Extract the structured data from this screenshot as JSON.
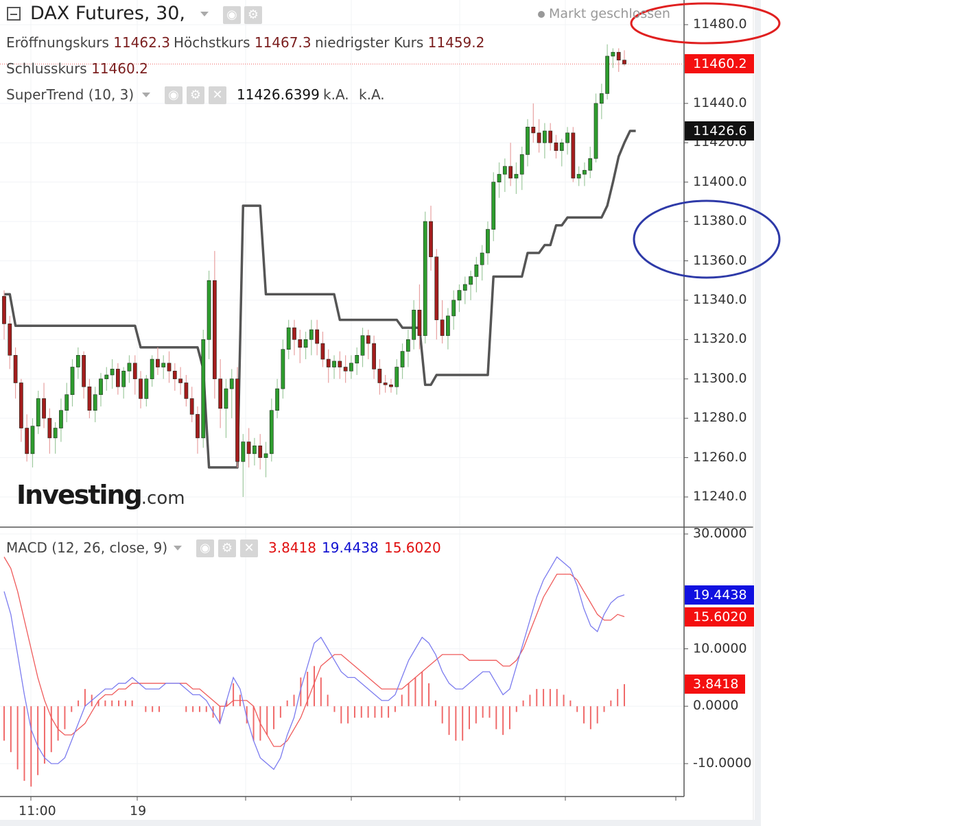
{
  "header": {
    "title": "DAX Futures, 30,",
    "status": "Markt geschlossen",
    "ohlc": {
      "open_label": "Eröffnungskurs",
      "open": "11462.3",
      "high_label": "Höchstkurs",
      "high": "11467.3",
      "low_label": "niedrigster Kurs",
      "low": "11459.2",
      "close_label": "Schlusskurs",
      "close": "11460.2"
    },
    "supertrend": {
      "label": "SuperTrend (10, 3)",
      "value": "11426.6399",
      "na1": "k.A.",
      "na2": "k.A."
    },
    "macd": {
      "label": "MACD (12, 26, close, 9)",
      "hist": "3.8418",
      "macd": "19.4438",
      "signal": "15.6020"
    },
    "brand": {
      "name": "Investing",
      "suffix": ".com"
    }
  },
  "colors": {
    "up": "#2e9c2e",
    "down": "#a31d1d",
    "supertrend": "#555555",
    "macd_line": "#7b7bef",
    "signal_line": "#ef5a5a",
    "histogram": "#f06a6a",
    "ellipse_red": "#e02020",
    "ellipse_blue": "#2e3aa8"
  },
  "chart_data": [
    {
      "type": "candlestick",
      "series_name": "DAX Futures, 30,",
      "ylim": [
        11230,
        11490
      ],
      "yticks": [
        "11480.0",
        "11440.0",
        "11420.0",
        "11400.0",
        "11380.0",
        "11360.0",
        "11340.0",
        "11320.0",
        "11300.0",
        "11280.0",
        "11260.0",
        "11240.0"
      ],
      "ytick_values": [
        11480,
        11440,
        11420,
        11400,
        11380,
        11360,
        11340,
        11320,
        11300,
        11280,
        11260,
        11240
      ],
      "xticks": [
        "11:00",
        "19"
      ],
      "last_price_tag": "11460.2",
      "supertrend_tag": "11426.6",
      "candles": [
        [
          11342,
          11345,
          11320,
          11328
        ],
        [
          11328,
          11332,
          11305,
          11312
        ],
        [
          11312,
          11316,
          11290,
          11298
        ],
        [
          11298,
          11300,
          11268,
          11275
        ],
        [
          11275,
          11282,
          11258,
          11262
        ],
        [
          11262,
          11280,
          11255,
          11276
        ],
        [
          11276,
          11294,
          11272,
          11290
        ],
        [
          11290,
          11298,
          11275,
          11280
        ],
        [
          11280,
          11285,
          11262,
          11270
        ],
        [
          11270,
          11278,
          11262,
          11275
        ],
        [
          11275,
          11290,
          11268,
          11284
        ],
        [
          11284,
          11298,
          11278,
          11292
        ],
        [
          11292,
          11310,
          11286,
          11306
        ],
        [
          11306,
          11316,
          11300,
          11312
        ],
        [
          11312,
          11314,
          11290,
          11296
        ],
        [
          11296,
          11300,
          11280,
          11284
        ],
        [
          11284,
          11296,
          11278,
          11292
        ],
        [
          11292,
          11303,
          11286,
          11300
        ],
        [
          11300,
          11306,
          11294,
          11302
        ],
        [
          11302,
          11310,
          11295,
          11305
        ],
        [
          11305,
          11308,
          11292,
          11296
        ],
        [
          11296,
          11306,
          11290,
          11304
        ],
        [
          11304,
          11312,
          11298,
          11308
        ],
        [
          11308,
          11312,
          11292,
          11300
        ],
        [
          11300,
          11304,
          11285,
          11290
        ],
        [
          11290,
          11302,
          11286,
          11300
        ],
        [
          11300,
          11312,
          11296,
          11310
        ],
        [
          11310,
          11316,
          11302,
          11306
        ],
        [
          11306,
          11312,
          11300,
          11308
        ],
        [
          11308,
          11314,
          11298,
          11304
        ],
        [
          11304,
          11308,
          11294,
          11300
        ],
        [
          11300,
          11306,
          11292,
          11298
        ],
        [
          11298,
          11302,
          11286,
          11290
        ],
        [
          11290,
          11296,
          11278,
          11282
        ],
        [
          11282,
          11286,
          11262,
          11270
        ],
        [
          11270,
          11325,
          11265,
          11320
        ],
        [
          11320,
          11355,
          11310,
          11350
        ],
        [
          11350,
          11365,
          11290,
          11300
        ],
        [
          11300,
          11310,
          11275,
          11285
        ],
        [
          11285,
          11300,
          11270,
          11295
        ],
        [
          11295,
          11305,
          11280,
          11300
        ],
        [
          11300,
          11306,
          11255,
          11258
        ],
        [
          11258,
          11272,
          11240,
          11268
        ],
        [
          11268,
          11275,
          11255,
          11262
        ],
        [
          11262,
          11270,
          11256,
          11266
        ],
        [
          11266,
          11272,
          11254,
          11260
        ],
        [
          11260,
          11268,
          11250,
          11262
        ],
        [
          11262,
          11290,
          11258,
          11284
        ],
        [
          11284,
          11300,
          11280,
          11295
        ],
        [
          11295,
          11320,
          11290,
          11315
        ],
        [
          11315,
          11330,
          11310,
          11326
        ],
        [
          11326,
          11330,
          11312,
          11320
        ],
        [
          11320,
          11325,
          11308,
          11316
        ],
        [
          11316,
          11324,
          11310,
          11320
        ],
        [
          11320,
          11330,
          11312,
          11325
        ],
        [
          11325,
          11330,
          11312,
          11318
        ],
        [
          11318,
          11324,
          11306,
          11310
        ],
        [
          11310,
          11315,
          11298,
          11306
        ],
        [
          11306,
          11312,
          11300,
          11309
        ],
        [
          11309,
          11314,
          11300,
          11306
        ],
        [
          11306,
          11312,
          11298,
          11304
        ],
        [
          11304,
          11312,
          11300,
          11308
        ],
        [
          11308,
          11316,
          11302,
          11312
        ],
        [
          11312,
          11326,
          11306,
          11322
        ],
        [
          11322,
          11325,
          11310,
          11318
        ],
        [
          11318,
          11322,
          11300,
          11305
        ],
        [
          11305,
          11310,
          11292,
          11298
        ],
        [
          11298,
          11302,
          11293,
          11297
        ],
        [
          11297,
          11300,
          11293,
          11296
        ],
        [
          11296,
          11310,
          11292,
          11306
        ],
        [
          11306,
          11318,
          11300,
          11314
        ],
        [
          11314,
          11325,
          11306,
          11320
        ],
        [
          11320,
          11340,
          11315,
          11335
        ],
        [
          11335,
          11348,
          11315,
          11322
        ],
        [
          11322,
          11385,
          11318,
          11380
        ],
        [
          11380,
          11388,
          11355,
          11362
        ],
        [
          11362,
          11366,
          11320,
          11330
        ],
        [
          11330,
          11340,
          11318,
          11322
        ],
        [
          11322,
          11336,
          11315,
          11332
        ],
        [
          11332,
          11345,
          11325,
          11340
        ],
        [
          11340,
          11348,
          11334,
          11345
        ],
        [
          11345,
          11352,
          11338,
          11348
        ],
        [
          11348,
          11355,
          11340,
          11352
        ],
        [
          11352,
          11362,
          11344,
          11358
        ],
        [
          11358,
          11368,
          11350,
          11364
        ],
        [
          11364,
          11380,
          11358,
          11376
        ],
        [
          11376,
          11405,
          11370,
          11400
        ],
        [
          11400,
          11410,
          11392,
          11404
        ],
        [
          11404,
          11412,
          11395,
          11408
        ],
        [
          11408,
          11420,
          11398,
          11402
        ],
        [
          11402,
          11410,
          11394,
          11404
        ],
        [
          11404,
          11418,
          11396,
          11414
        ],
        [
          11414,
          11432,
          11408,
          11428
        ],
        [
          11428,
          11440,
          11420,
          11425
        ],
        [
          11425,
          11432,
          11415,
          11420
        ],
        [
          11420,
          11430,
          11412,
          11426
        ],
        [
          11426,
          11430,
          11416,
          11420
        ],
        [
          11420,
          11424,
          11412,
          11416
        ],
        [
          11416,
          11422,
          11408,
          11420
        ],
        [
          11420,
          11428,
          11414,
          11425
        ],
        [
          11425,
          11428,
          11400,
          11402
        ],
        [
          11402,
          11408,
          11398,
          11404
        ],
        [
          11404,
          11410,
          11398,
          11406
        ],
        [
          11406,
          11418,
          11402,
          11412
        ],
        [
          11412,
          11445,
          11410,
          11440
        ],
        [
          11440,
          11450,
          11432,
          11445
        ],
        [
          11445,
          11470,
          11442,
          11464
        ],
        [
          11464,
          11468,
          11458,
          11466
        ],
        [
          11466,
          11468,
          11456,
          11462
        ],
        [
          11462,
          11467,
          11459,
          11460
        ]
      ],
      "supertrend": [
        11343,
        11343,
        11327,
        11327,
        11327,
        11327,
        11327,
        11327,
        11327,
        11327,
        11327,
        11327,
        11327,
        11327,
        11327,
        11327,
        11327,
        11327,
        11327,
        11327,
        11327,
        11327,
        11327,
        11327,
        11316,
        11316,
        11316,
        11316,
        11316,
        11316,
        11316,
        11316,
        11316,
        11316,
        11316,
        11305,
        11255,
        11255,
        11255,
        11255,
        11255,
        11255,
        11388,
        11388,
        11388,
        11388,
        11343,
        11343,
        11343,
        11343,
        11343,
        11343,
        11343,
        11343,
        11343,
        11343,
        11343,
        11343,
        11343,
        11330,
        11330,
        11330,
        11330,
        11330,
        11330,
        11330,
        11330,
        11330,
        11330,
        11330,
        11326,
        11326,
        11326,
        11326,
        11297,
        11297,
        11302,
        11302,
        11302,
        11302,
        11302,
        11302,
        11302,
        11302,
        11302,
        11302,
        11352,
        11352,
        11352,
        11352,
        11352,
        11352,
        11364,
        11364,
        11364,
        11368,
        11368,
        11378,
        11378,
        11382,
        11382,
        11382,
        11382,
        11382,
        11382,
        11382,
        11388,
        11400,
        11413,
        11420,
        11426,
        11426
      ]
    },
    {
      "type": "macd",
      "series_name": "MACD (12, 26, close, 9)",
      "ylim": [
        -14,
        30
      ],
      "yticks": [
        "30.0000",
        "10.0000",
        "0.0000",
        "-10.0000"
      ],
      "ytick_values": [
        30,
        10,
        0,
        -10
      ],
      "tags": {
        "macd": "19.4438",
        "signal": "15.6020",
        "hist": "3.8418"
      },
      "macd": [
        20,
        16,
        9,
        2,
        -4,
        -7,
        -9,
        -10,
        -10,
        -9,
        -6,
        -3,
        0,
        1,
        2,
        3,
        3,
        4,
        4,
        5,
        4,
        3,
        3,
        3,
        4,
        4,
        4,
        3,
        2,
        2,
        1,
        -1,
        -3,
        1,
        5,
        3,
        -2,
        -6,
        -9,
        -10,
        -11,
        -9,
        -5,
        -2,
        3,
        7,
        11,
        12,
        10,
        8,
        6,
        5,
        5,
        4,
        3,
        2,
        1,
        1,
        2,
        5,
        8,
        10,
        12,
        11,
        9,
        6,
        4,
        3,
        3,
        4,
        5,
        6,
        6,
        4,
        2,
        3,
        7,
        11,
        15,
        19,
        22,
        24,
        26,
        25,
        24,
        21,
        17,
        14,
        13,
        16,
        18,
        19,
        19.4
      ],
      "signal": [
        26,
        24,
        20,
        15,
        10,
        5,
        1,
        -2,
        -4,
        -5,
        -5,
        -4,
        -3,
        -1,
        1,
        2,
        2,
        3,
        3,
        4,
        4,
        4,
        4,
        4,
        4,
        4,
        4,
        4,
        3,
        3,
        2,
        1,
        0,
        0,
        1,
        1,
        1,
        0,
        -3,
        -5,
        -7,
        -7,
        -6,
        -4,
        -2,
        1,
        4,
        7,
        8,
        9,
        9,
        8,
        7,
        6,
        5,
        4,
        3,
        3,
        3,
        3,
        4,
        5,
        6,
        7,
        8,
        9,
        9,
        9,
        9,
        8,
        8,
        8,
        8,
        8,
        7,
        7,
        8,
        10,
        13,
        16,
        19,
        21,
        23,
        23,
        23,
        22,
        20,
        18,
        16,
        15,
        15,
        16,
        15.6
      ],
      "hist": [
        -6,
        -8,
        -11,
        -13,
        -14,
        -12,
        -10,
        -8,
        -6,
        -4,
        -1,
        1,
        3,
        2,
        1,
        1,
        1,
        1,
        1,
        1,
        0,
        -1,
        -1,
        -1,
        0,
        0,
        0,
        -1,
        -1,
        -1,
        -1,
        -2,
        -3,
        1,
        4,
        2,
        -3,
        -6,
        -6,
        -5,
        -4,
        -2,
        1,
        2,
        5,
        6,
        7,
        5,
        2,
        -1,
        -3,
        -3,
        -2,
        -2,
        -2,
        -2,
        -2,
        -2,
        -1,
        2,
        4,
        5,
        6,
        4,
        1,
        -3,
        -5,
        -6,
        -6,
        -4,
        -3,
        -2,
        -2,
        -4,
        -5,
        -4,
        -1,
        1,
        2,
        3,
        3,
        3,
        3,
        2,
        1,
        -1,
        -3,
        -4,
        -3,
        -1,
        1,
        3,
        3.8418
      ]
    }
  ]
}
